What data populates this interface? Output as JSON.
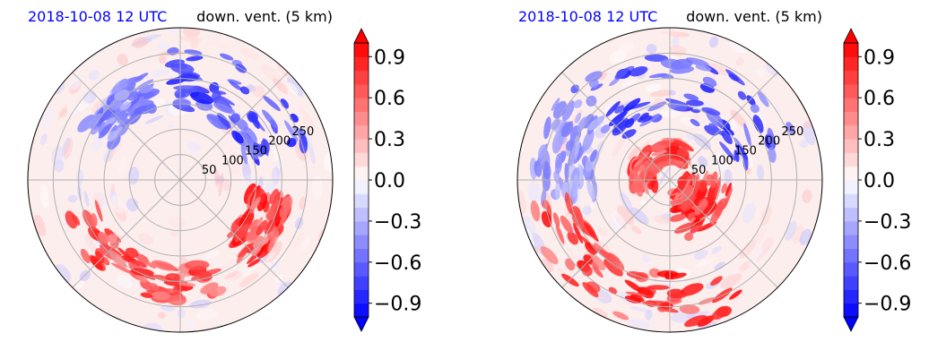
{
  "chart_data": [
    {
      "type": "polar-contourf",
      "title_left": "2018-10-08 12 UTC",
      "title_right": "down. vent. (5 km)",
      "title_left_color": "#0000ff",
      "radial_ticks": [
        50,
        100,
        150,
        200,
        250
      ],
      "radial_max": 300,
      "angular_gridlines_deg": [
        0,
        45,
        90,
        135,
        180,
        225,
        270,
        315
      ],
      "colorbar": {
        "ticks": [
          0.9,
          0.6,
          0.3,
          0.0,
          -0.3,
          -0.6,
          -0.9
        ],
        "tick_labels": [
          "0.9",
          "0.6",
          "0.3",
          "0.0",
          "−0.3",
          "−0.6",
          "−0.9"
        ],
        "range": [
          -1.0,
          1.0
        ],
        "levels": 20,
        "extend": "both",
        "cmap": "bwr"
      },
      "features": [
        {
          "sign": "negative",
          "r_range": [
            130,
            260
          ],
          "theta_range_deg": [
            15,
            95
          ],
          "strength": 0.9
        },
        {
          "sign": "negative",
          "r_range": [
            150,
            220
          ],
          "theta_range_deg": [
            110,
            150
          ],
          "strength": 0.6
        },
        {
          "sign": "positive",
          "r_range": [
            170,
            240
          ],
          "theta_range_deg": [
            200,
            290
          ],
          "strength": 0.9
        },
        {
          "sign": "positive",
          "r_range": [
            140,
            220
          ],
          "theta_range_deg": [
            310,
            350
          ],
          "strength": 1.0
        }
      ]
    },
    {
      "type": "polar-contourf",
      "title_left": "2018-10-08 12 UTC",
      "title_right": "down. vent. (5 km)",
      "title_left_color": "#0000ff",
      "radial_ticks": [
        50,
        100,
        150,
        200,
        250
      ],
      "radial_max": 300,
      "angular_gridlines_deg": [
        0,
        45,
        90,
        135,
        180,
        225,
        270,
        315
      ],
      "colorbar": {
        "ticks": [
          0.9,
          0.6,
          0.3,
          0.0,
          -0.3,
          -0.6,
          -0.9
        ],
        "tick_labels": [
          "0.9",
          "0.6",
          "0.3",
          "0.0",
          "−0.3",
          "−0.6",
          "−0.9"
        ],
        "range": [
          -1.0,
          1.0
        ],
        "levels": 20,
        "extend": "both",
        "cmap": "bwr"
      },
      "features": [
        {
          "sign": "negative",
          "r_range": [
            120,
            260
          ],
          "theta_range_deg": [
            10,
            140
          ],
          "strength": 0.9
        },
        {
          "sign": "negative",
          "r_range": [
            150,
            270
          ],
          "theta_range_deg": [
            140,
            190
          ],
          "strength": 0.5
        },
        {
          "sign": "positive",
          "r_range": [
            180,
            290
          ],
          "theta_range_deg": [
            190,
            300
          ],
          "strength": 1.0
        },
        {
          "sign": "positive",
          "r_range": [
            20,
            120
          ],
          "theta_range_deg": [
            280,
            360
          ],
          "strength": 1.0
        },
        {
          "sign": "positive",
          "r_range": [
            30,
            80
          ],
          "theta_range_deg": [
            60,
            200
          ],
          "strength": 0.9
        }
      ]
    }
  ]
}
